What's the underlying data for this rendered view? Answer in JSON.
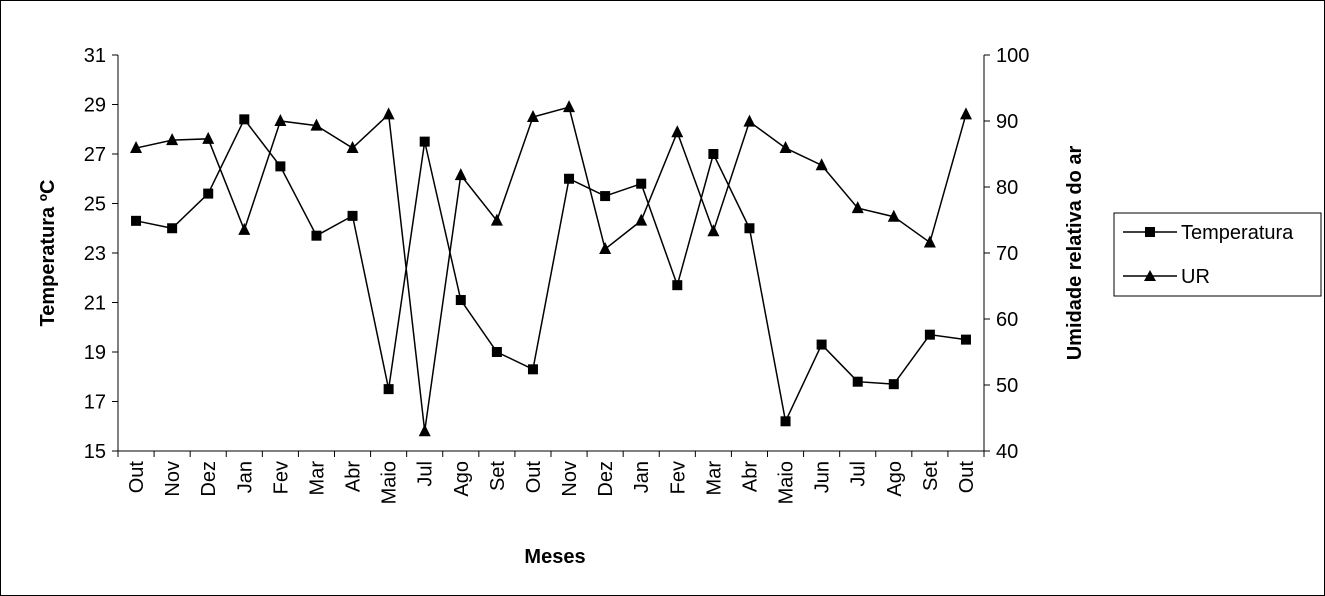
{
  "chart_data": {
    "type": "line",
    "title": "",
    "xlabel": "Meses",
    "ylabel": "Temperatura ºC",
    "y2label": "Umidade relativa do ar",
    "categories": [
      "Out",
      "Nov",
      "Dez",
      "Jan",
      "Fev",
      "Mar",
      "Abr",
      "Maio",
      "Jul",
      "Ago",
      "Set",
      "Out",
      "Nov",
      "Dez",
      "Jan",
      "Fev",
      "Mar",
      "Abr",
      "Maio",
      "Jun",
      "Jul",
      "Ago",
      "Set",
      "Out"
    ],
    "ylim": [
      15,
      31
    ],
    "yticks": [
      15,
      17,
      19,
      21,
      23,
      25,
      27,
      29,
      31
    ],
    "y2lim": [
      40,
      100
    ],
    "y2ticks": [
      40,
      50,
      60,
      70,
      80,
      90,
      100
    ],
    "legend_position": "right",
    "grid": false,
    "series": [
      {
        "name": "Temperatura",
        "axis": "left",
        "marker": "square",
        "color": "#000000",
        "values": [
          24.3,
          24.0,
          25.4,
          28.4,
          26.5,
          23.7,
          24.5,
          17.5,
          27.5,
          21.1,
          19.0,
          18.3,
          26.0,
          25.3,
          25.8,
          21.7,
          27.0,
          24.0,
          16.2,
          19.3,
          17.8,
          17.7,
          19.7,
          19.5
        ]
      },
      {
        "name": "UR",
        "axis": "right",
        "marker": "triangle",
        "color": "#000000",
        "values": [
          85.9,
          87.1,
          87.3,
          73.5,
          90.0,
          89.3,
          85.9,
          91.0,
          43.0,
          81.8,
          74.9,
          90.6,
          92.1,
          70.6,
          74.9,
          88.3,
          73.3,
          89.9,
          85.9,
          83.3,
          76.8,
          75.5,
          71.6,
          91.0
        ]
      }
    ]
  }
}
